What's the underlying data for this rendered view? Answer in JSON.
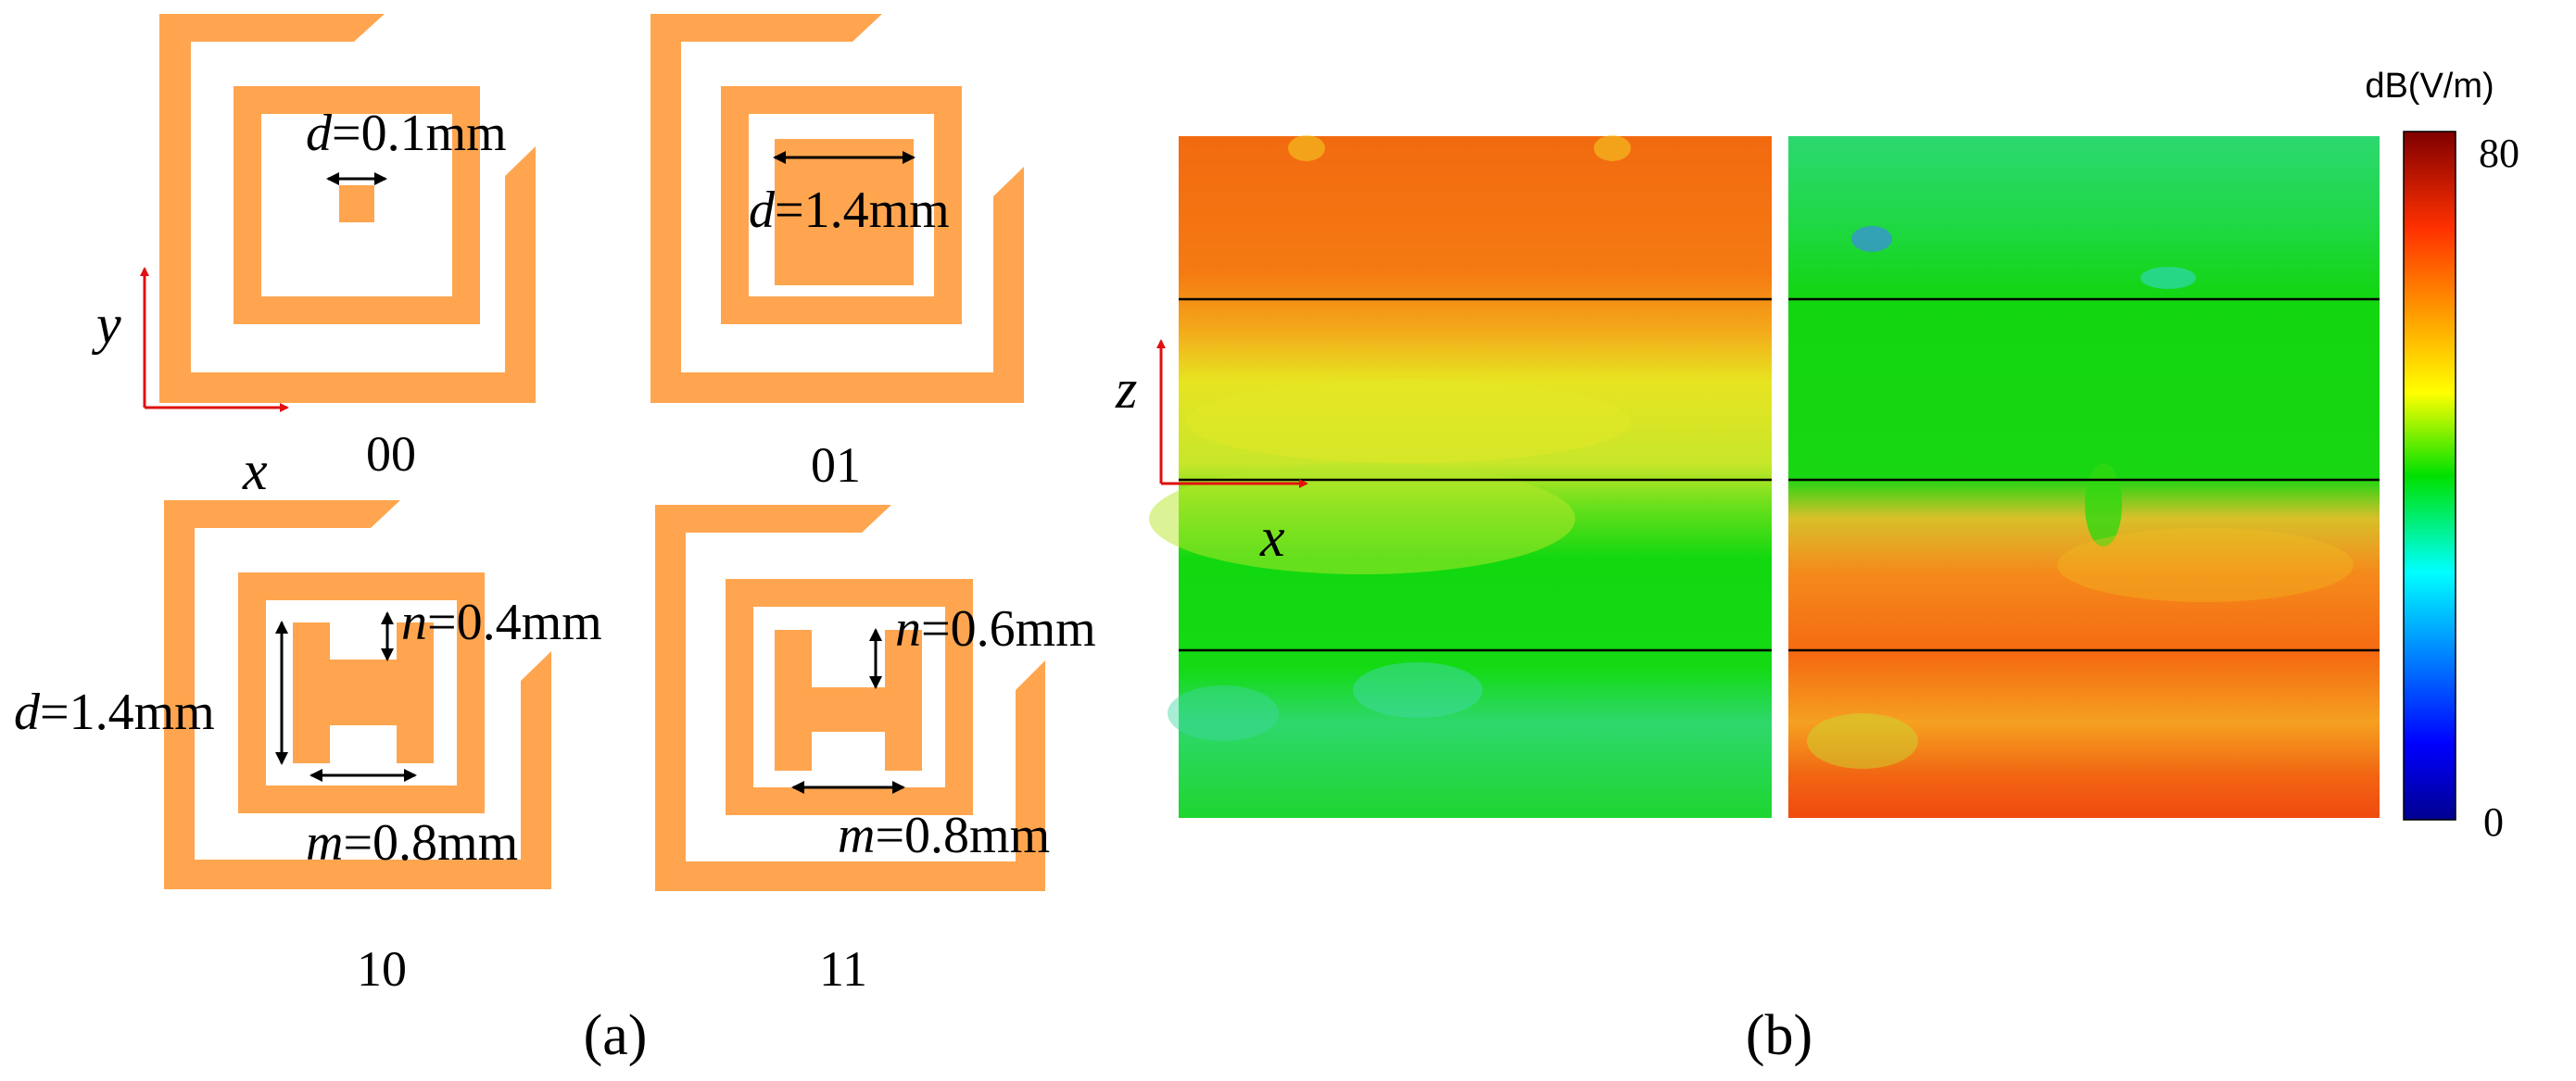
{
  "panel_a": {
    "label": "(a)",
    "axis_x": "x",
    "axis_y": "y",
    "cells": [
      {
        "code": "00",
        "d_sym": "d",
        "d_val": "=0.1mm"
      },
      {
        "code": "01",
        "d_sym": "d",
        "d_val": "=1.4mm"
      },
      {
        "code": "10",
        "d_sym": "d",
        "d_val": "=1.4mm",
        "n_sym": "n",
        "n_val": "=0.4mm",
        "m_sym": "m",
        "m_val": "=0.8mm"
      },
      {
        "code": "11",
        "n_sym": "n",
        "n_val": "=0.6mm",
        "m_sym": "m",
        "m_val": "=0.8mm"
      }
    ]
  },
  "panel_b": {
    "label": "(b)",
    "axis_z": "z",
    "axis_x": "x",
    "colorbar": {
      "unit": "dB(V/m)",
      "max": "80",
      "min": "0"
    }
  },
  "colors": {
    "metal": "#FFA54F",
    "axis_arrow": "#E01010",
    "dim_arrow": "#000000"
  }
}
